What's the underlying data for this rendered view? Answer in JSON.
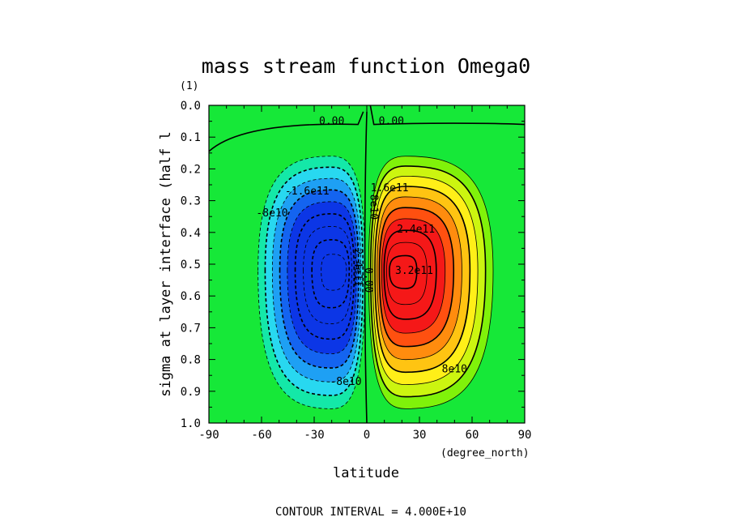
{
  "chart_data": {
    "type": "heatmap",
    "title": "mass stream function Omega0",
    "xlabel": "latitude",
    "x_unit": "(degree_north)",
    "ylabel": "sigma at layer interface (half l",
    "y_unit": "(1)",
    "xlim": [
      -90,
      90
    ],
    "ylim": [
      1.0,
      0.0
    ],
    "x_ticks": [
      "-90",
      "-60",
      "-30",
      "0",
      "30",
      "60",
      "90"
    ],
    "y_ticks": [
      "0.0",
      "0.1",
      "0.2",
      "0.3",
      "0.4",
      "0.5",
      "0.6",
      "0.7",
      "0.8",
      "0.9",
      "1.0"
    ],
    "contour_interval_text": "CONTOUR INTERVAL = 4.000E+10",
    "contour_interval": 40000000000,
    "extrema": [
      {
        "lat": -20,
        "sigma": 0.52,
        "value": -340000000000.0
      },
      {
        "lat": 22,
        "sigma": 0.52,
        "value": 360000000000.0
      }
    ],
    "contour_labels": [
      {
        "text": "0.00",
        "lat": -20,
        "sigma": 0.06
      },
      {
        "text": "0.00",
        "lat": 14,
        "sigma": 0.06
      },
      {
        "text": "-8e10",
        "lat": -54,
        "sigma": 0.35
      },
      {
        "text": "-1.6e11",
        "lat": -34,
        "sigma": 0.28
      },
      {
        "text": "-2.4e11",
        "lat": -7,
        "sigma": 0.5
      },
      {
        "text": "-8e10",
        "lat": -12,
        "sigma": 0.88
      },
      {
        "text": "0.00",
        "lat": -1,
        "sigma": 0.55
      },
      {
        "text": "8e10",
        "lat": 2,
        "sigma": 0.32
      },
      {
        "text": "1.6e11",
        "lat": 13,
        "sigma": 0.27
      },
      {
        "text": "2.4e11",
        "lat": 28,
        "sigma": 0.4
      },
      {
        "text": "3.2e11",
        "lat": 27,
        "sigma": 0.53
      },
      {
        "text": "8e10",
        "lat": 50,
        "sigma": 0.84
      }
    ],
    "colors": {
      "neg4": "#0c36e6",
      "neg3": "#1464f0",
      "neg2": "#1ea0f4",
      "neg1": "#28d8f0",
      "neg0": "#14e8a8",
      "zero": "#16e838",
      "pos0": "#80f20a",
      "pos1": "#ccf510",
      "pos2": "#ffef18",
      "pos3": "#ffc412",
      "pos4": "#ff8c0e",
      "pos5": "#ff5010",
      "pos6": "#f51818"
    }
  }
}
